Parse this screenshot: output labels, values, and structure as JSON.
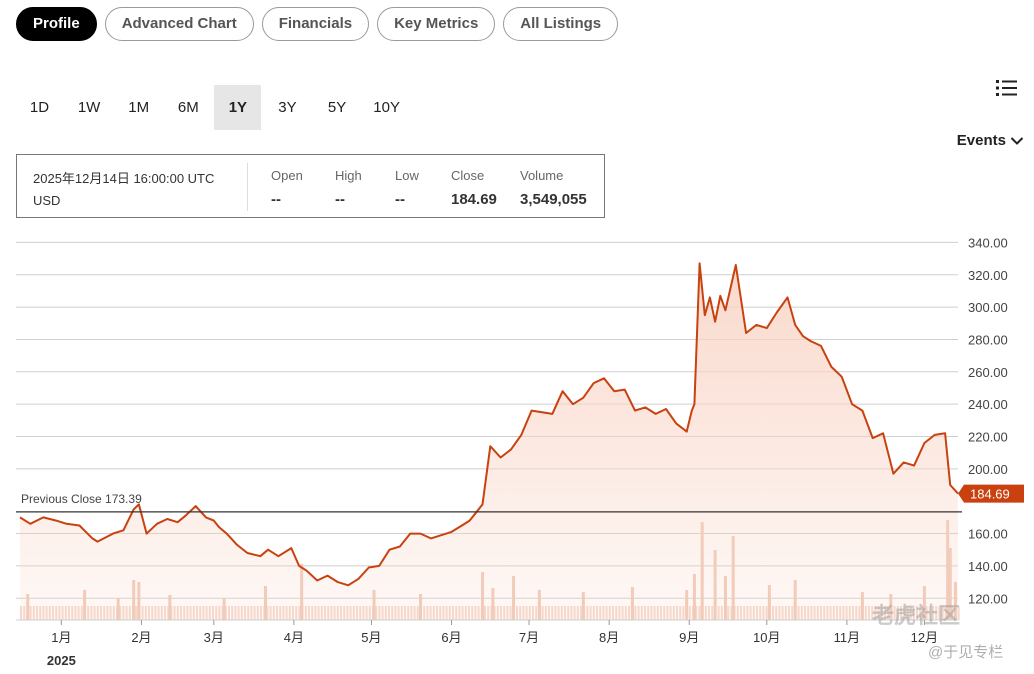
{
  "tabs": [
    {
      "label": "Profile",
      "active": true
    },
    {
      "label": "Advanced Chart",
      "active": false
    },
    {
      "label": "Financials",
      "active": false
    },
    {
      "label": "Key Metrics",
      "active": false
    },
    {
      "label": "All Listings",
      "active": false
    }
  ],
  "ranges": [
    {
      "label": "1D",
      "active": false
    },
    {
      "label": "1W",
      "active": false
    },
    {
      "label": "1M",
      "active": false
    },
    {
      "label": "6M",
      "active": false
    },
    {
      "label": "1Y",
      "active": true
    },
    {
      "label": "3Y",
      "active": false
    },
    {
      "label": "5Y",
      "active": false
    },
    {
      "label": "10Y",
      "active": false
    }
  ],
  "events_label": "Events",
  "info": {
    "datetime": "2025年12月14日 16:00:00 UTC",
    "currency": "USD",
    "open_label": "Open",
    "open_value": "--",
    "high_label": "High",
    "high_value": "--",
    "low_label": "Low",
    "low_value": "--",
    "close_label": "Close",
    "close_value": "184.69",
    "volume_label": "Volume",
    "volume_value": "3,549,055"
  },
  "colors": {
    "accent": "#c8410f",
    "fill": "#f9d5c6",
    "volume": "#f0c8b6"
  },
  "watermark": {
    "line1": "老虎社区",
    "line2": "@于见专栏"
  },
  "chart_data": {
    "type": "area",
    "yticks": [
      "340.00",
      "320.00",
      "300.00",
      "280.00",
      "260.00",
      "240.00",
      "220.00",
      "200.00",
      "160.00",
      "140.00",
      "120.00"
    ],
    "ylim": [
      110,
      345
    ],
    "month_labels": [
      "1月",
      "2月",
      "3月",
      "4月",
      "5月",
      "6月",
      "7月",
      "8月",
      "9月",
      "10月",
      "11月",
      "12月"
    ],
    "year_label": "2025",
    "previous_close": {
      "label": "Previous Close 173.39",
      "value": 173.39
    },
    "last_price": {
      "label": "184.69",
      "value": 184.69
    },
    "x_domain": [
      "2024-12-16",
      "2025-12-14"
    ],
    "series": [
      {
        "x": [
          "2024-12-16",
          "2024-12-20",
          "2024-12-25",
          "2024-12-30",
          "2025-01-03",
          "2025-01-08",
          "2025-01-13",
          "2025-01-15",
          "2025-01-21",
          "2025-01-25",
          "2025-01-29",
          "2025-01-31",
          "2025-02-03",
          "2025-02-05",
          "2025-02-07",
          "2025-02-11",
          "2025-02-15",
          "2025-02-18",
          "2025-02-22",
          "2025-02-26",
          "2025-03-01",
          "2025-03-03",
          "2025-03-06",
          "2025-03-10",
          "2025-03-14",
          "2025-03-19",
          "2025-03-22",
          "2025-03-26",
          "2025-03-31",
          "2025-04-03",
          "2025-04-06",
          "2025-04-10",
          "2025-04-14",
          "2025-04-18",
          "2025-04-22",
          "2025-04-26",
          "2025-04-30",
          "2025-05-04",
          "2025-05-08",
          "2025-05-12",
          "2025-05-16",
          "2025-05-20",
          "2025-05-24",
          "2025-05-28",
          "2025-06-01",
          "2025-06-05",
          "2025-06-08",
          "2025-06-10",
          "2025-06-13",
          "2025-06-16",
          "2025-06-20",
          "2025-06-24",
          "2025-06-28",
          "2025-07-02",
          "2025-07-06",
          "2025-07-10",
          "2025-07-14",
          "2025-07-18",
          "2025-07-22",
          "2025-07-26",
          "2025-07-30",
          "2025-08-03",
          "2025-08-07",
          "2025-08-11",
          "2025-08-15",
          "2025-08-19",
          "2025-08-23",
          "2025-08-27",
          "2025-08-31",
          "2025-09-02",
          "2025-09-03",
          "2025-09-05",
          "2025-09-07",
          "2025-09-09",
          "2025-09-11",
          "2025-09-13",
          "2025-09-15",
          "2025-09-19",
          "2025-09-23",
          "2025-09-27",
          "2025-10-01",
          "2025-10-05",
          "2025-10-09",
          "2025-10-12",
          "2025-10-15",
          "2025-10-18",
          "2025-10-22",
          "2025-10-26",
          "2025-10-30",
          "2025-11-03",
          "2025-11-07",
          "2025-11-11",
          "2025-11-15",
          "2025-11-19",
          "2025-11-23",
          "2025-11-27",
          "2025-12-01",
          "2025-12-05",
          "2025-12-09",
          "2025-12-11",
          "2025-12-14"
        ],
        "y": [
          170,
          166,
          170,
          168,
          166,
          165,
          157,
          155,
          160,
          162,
          175,
          178,
          160,
          163,
          166,
          169,
          167,
          171,
          177,
          170,
          168,
          164,
          160,
          153,
          148,
          146,
          150,
          146,
          151,
          140,
          137,
          131,
          134,
          130,
          128,
          132,
          139,
          140,
          150,
          152,
          160,
          160,
          157,
          159,
          161,
          165,
          168,
          172,
          178,
          214,
          207,
          212,
          221,
          236,
          235,
          234,
          248,
          240,
          244,
          253,
          256,
          248,
          249,
          236,
          238,
          234,
          237,
          228,
          223,
          236,
          240,
          327,
          295,
          306,
          291,
          307,
          298,
          326,
          284,
          289,
          287,
          297,
          306,
          289,
          282,
          279,
          276,
          263,
          257,
          240,
          236,
          219,
          222,
          197,
          204,
          202,
          216,
          221,
          222,
          190,
          184.69
        ]
      }
    ],
    "volume": {
      "x": [
        "2024-12-19",
        "2025-01-10",
        "2025-01-23",
        "2025-01-29",
        "2025-01-31",
        "2025-02-12",
        "2025-03-05",
        "2025-03-21",
        "2025-04-04",
        "2025-05-02",
        "2025-05-20",
        "2025-06-13",
        "2025-06-17",
        "2025-06-25",
        "2025-07-05",
        "2025-07-22",
        "2025-08-10",
        "2025-08-31",
        "2025-09-03",
        "2025-09-06",
        "2025-09-11",
        "2025-09-15",
        "2025-09-18",
        "2025-10-02",
        "2025-10-12",
        "2025-11-07",
        "2025-11-18",
        "2025-12-01",
        "2025-12-10",
        "2025-12-11",
        "2025-12-13"
      ],
      "values": [
        26,
        30,
        22,
        40,
        38,
        25,
        22,
        34,
        56,
        30,
        26,
        48,
        32,
        44,
        30,
        28,
        33,
        30,
        46,
        98,
        70,
        44,
        84,
        35,
        40,
        28,
        26,
        34,
        100,
        72,
        38
      ]
    }
  }
}
